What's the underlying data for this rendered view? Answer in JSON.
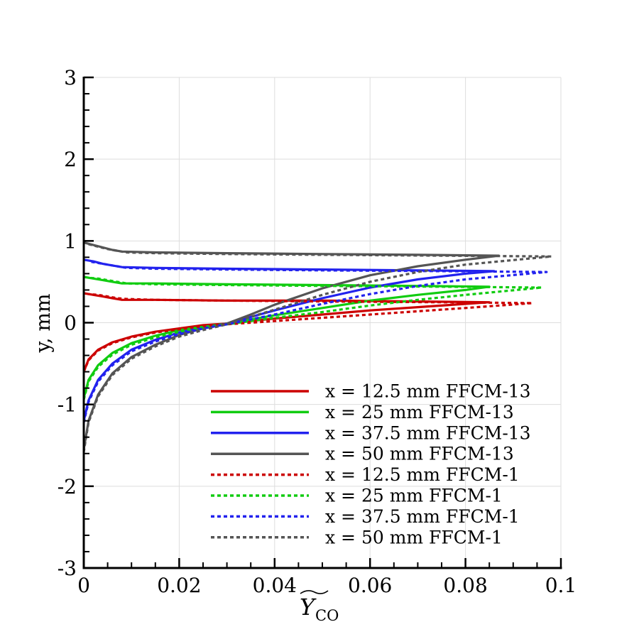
{
  "chart_data": {
    "type": "line",
    "title": "",
    "xlabel": "Y_CO",
    "ylabel": "y, mm",
    "xlim": [
      0,
      0.1
    ],
    "ylim": [
      -3,
      3
    ],
    "xticks": [
      0,
      0.02,
      0.04,
      0.06,
      0.08,
      0.1
    ],
    "xtick_labels": [
      "0",
      "0.02",
      "0.04",
      "0.06",
      "0.08",
      "0.1"
    ],
    "yticks": [
      -3,
      -2,
      -1,
      0,
      1,
      2,
      3
    ],
    "ytick_labels": [
      "-3",
      "-2",
      "-1",
      "0",
      "1",
      "2",
      "3"
    ],
    "grid": true,
    "legend_position": "bottom-right",
    "series": [
      {
        "name": "x = 12.5 mm FFCM-13",
        "color": "#cc0000",
        "dash": "solid",
        "x": [
          0,
          0.001,
          0.003,
          0.006,
          0.01,
          0.015,
          0.02,
          0.025,
          0.03,
          0.035,
          0.04,
          0.05,
          0.06,
          0.07,
          0.08,
          0.085,
          0.07,
          0.05,
          0.03,
          0.015,
          0.008,
          0.006,
          0.004,
          0.002,
          0
        ],
        "y": [
          -0.6,
          -0.45,
          -0.33,
          -0.24,
          -0.17,
          -0.11,
          -0.07,
          -0.03,
          -0.01,
          0.02,
          0.05,
          0.1,
          0.15,
          0.19,
          0.23,
          0.25,
          0.26,
          0.27,
          0.27,
          0.28,
          0.28,
          0.3,
          0.32,
          0.34,
          0.36
        ]
      },
      {
        "name": "x = 25 mm FFCM-13",
        "color": "#11cc11",
        "dash": "solid",
        "x": [
          0,
          0.001,
          0.003,
          0.006,
          0.01,
          0.015,
          0.02,
          0.025,
          0.03,
          0.035,
          0.04,
          0.05,
          0.06,
          0.07,
          0.08,
          0.085,
          0.07,
          0.05,
          0.03,
          0.015,
          0.008,
          0.006,
          0.004,
          0.002,
          0
        ],
        "y": [
          -0.92,
          -0.7,
          -0.52,
          -0.37,
          -0.25,
          -0.16,
          -0.09,
          -0.05,
          -0.01,
          0.04,
          0.09,
          0.18,
          0.27,
          0.34,
          0.4,
          0.44,
          0.45,
          0.46,
          0.47,
          0.48,
          0.48,
          0.5,
          0.52,
          0.54,
          0.56
        ]
      },
      {
        "name": "x = 37.5 mm FFCM-13",
        "color": "#2222ee",
        "dash": "solid",
        "x": [
          0,
          0.001,
          0.003,
          0.006,
          0.01,
          0.015,
          0.02,
          0.025,
          0.03,
          0.035,
          0.04,
          0.05,
          0.06,
          0.07,
          0.08,
          0.086,
          0.07,
          0.05,
          0.03,
          0.015,
          0.008,
          0.006,
          0.004,
          0.002,
          0
        ],
        "y": [
          -1.2,
          -0.95,
          -0.7,
          -0.5,
          -0.33,
          -0.21,
          -0.12,
          -0.06,
          -0.01,
          0.07,
          0.15,
          0.3,
          0.43,
          0.53,
          0.6,
          0.63,
          0.64,
          0.65,
          0.66,
          0.67,
          0.68,
          0.7,
          0.72,
          0.75,
          0.77
        ]
      },
      {
        "name": "x = 50 mm FFCM-13",
        "color": "#555555",
        "dash": "solid",
        "x": [
          0,
          0.001,
          0.003,
          0.006,
          0.01,
          0.015,
          0.02,
          0.025,
          0.03,
          0.035,
          0.04,
          0.05,
          0.06,
          0.07,
          0.08,
          0.087,
          0.07,
          0.05,
          0.03,
          0.015,
          0.008,
          0.006,
          0.004,
          0.002,
          0
        ],
        "y": [
          -1.55,
          -1.2,
          -0.88,
          -0.62,
          -0.42,
          -0.27,
          -0.15,
          -0.07,
          -0.01,
          0.1,
          0.22,
          0.42,
          0.58,
          0.69,
          0.77,
          0.82,
          0.83,
          0.84,
          0.85,
          0.86,
          0.87,
          0.89,
          0.92,
          0.95,
          0.98
        ]
      },
      {
        "name": "x = 12.5 mm FFCM-1",
        "color": "#cc0000",
        "dash": "dotted",
        "x": [
          0,
          0.001,
          0.003,
          0.006,
          0.01,
          0.015,
          0.02,
          0.025,
          0.03,
          0.035,
          0.04,
          0.05,
          0.06,
          0.07,
          0.08,
          0.094,
          0.075,
          0.05,
          0.03,
          0.015,
          0.009,
          0.007,
          0.005,
          0.003,
          0.001
        ],
        "y": [
          -0.6,
          -0.46,
          -0.34,
          -0.25,
          -0.18,
          -0.12,
          -0.08,
          -0.04,
          -0.02,
          0.0,
          0.02,
          0.06,
          0.1,
          0.14,
          0.18,
          0.24,
          0.25,
          0.26,
          0.27,
          0.28,
          0.29,
          0.3,
          0.32,
          0.34,
          0.35
        ]
      },
      {
        "name": "x = 25 mm FFCM-1",
        "color": "#11cc11",
        "dash": "dotted",
        "x": [
          0,
          0.001,
          0.003,
          0.006,
          0.01,
          0.015,
          0.02,
          0.025,
          0.03,
          0.035,
          0.04,
          0.05,
          0.06,
          0.07,
          0.08,
          0.096,
          0.075,
          0.05,
          0.03,
          0.015,
          0.009,
          0.007,
          0.005,
          0.003,
          0.001
        ],
        "y": [
          -0.94,
          -0.72,
          -0.54,
          -0.39,
          -0.27,
          -0.18,
          -0.11,
          -0.06,
          -0.02,
          0.02,
          0.06,
          0.13,
          0.21,
          0.28,
          0.34,
          0.43,
          0.44,
          0.45,
          0.46,
          0.47,
          0.48,
          0.5,
          0.52,
          0.54,
          0.55
        ]
      },
      {
        "name": "x = 37.5 mm FFCM-1",
        "color": "#2222ee",
        "dash": "dotted",
        "x": [
          0,
          0.001,
          0.003,
          0.006,
          0.01,
          0.015,
          0.02,
          0.025,
          0.03,
          0.035,
          0.04,
          0.05,
          0.06,
          0.07,
          0.08,
          0.097,
          0.075,
          0.05,
          0.03,
          0.015,
          0.009,
          0.007,
          0.005,
          0.003,
          0.001
        ],
        "y": [
          -1.22,
          -0.97,
          -0.72,
          -0.52,
          -0.35,
          -0.23,
          -0.14,
          -0.07,
          -0.02,
          0.04,
          0.1,
          0.23,
          0.35,
          0.45,
          0.53,
          0.62,
          0.63,
          0.64,
          0.65,
          0.66,
          0.67,
          0.69,
          0.71,
          0.73,
          0.75
        ]
      },
      {
        "name": "x = 50 mm FFCM-1",
        "color": "#555555",
        "dash": "dotted",
        "x": [
          0,
          0.001,
          0.003,
          0.006,
          0.01,
          0.015,
          0.02,
          0.025,
          0.03,
          0.035,
          0.04,
          0.05,
          0.06,
          0.07,
          0.08,
          0.098,
          0.075,
          0.05,
          0.03,
          0.015,
          0.009,
          0.007,
          0.005,
          0.003,
          0.001
        ],
        "y": [
          -1.58,
          -1.22,
          -0.9,
          -0.64,
          -0.44,
          -0.29,
          -0.17,
          -0.09,
          -0.02,
          0.07,
          0.16,
          0.34,
          0.5,
          0.62,
          0.71,
          0.81,
          0.82,
          0.83,
          0.84,
          0.85,
          0.86,
          0.88,
          0.9,
          0.93,
          0.96
        ]
      }
    ]
  }
}
